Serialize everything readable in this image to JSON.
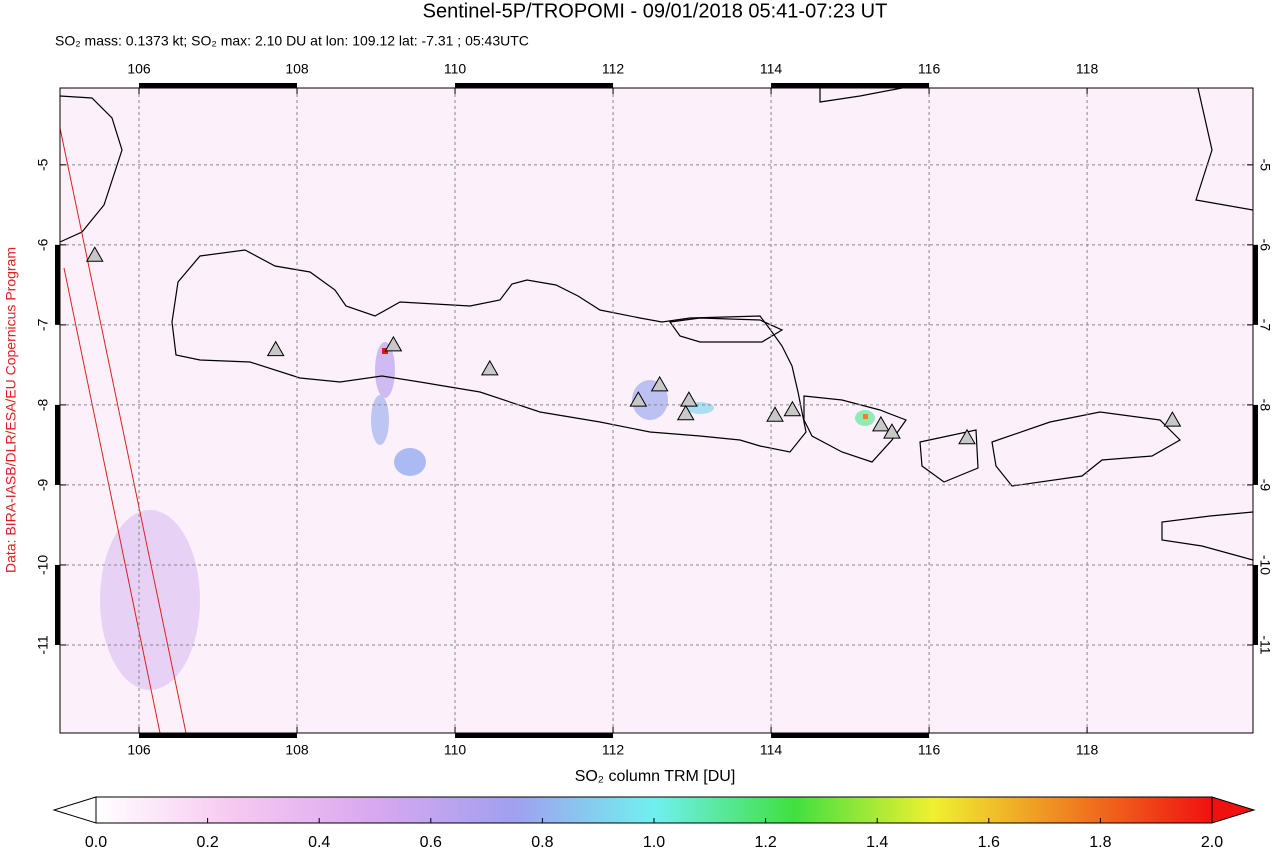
{
  "chart_data": {
    "type": "map",
    "title": "Sentinel-5P/TROPOMI - 09/01/2018 05:41-07:23 UT",
    "subtitle": "SO₂ mass: 0.1373 kt; SO₂ max: 2.10 DU at lon: 109.12 lat: -7.31 ; 05:43UTC",
    "credit": "Data: BIRA-IASB/DLR/ESA/EU Copernicus Program",
    "xlim": [
      105,
      120.1
    ],
    "ylim": [
      -4.04,
      -12.1
    ],
    "xticks": [
      106,
      108,
      110,
      112,
      114,
      116,
      118
    ],
    "yticks": [
      -5,
      -6,
      -7,
      -8,
      -9,
      -10,
      -11
    ],
    "grid": true,
    "volcanoes": {
      "color": "#c8c8c8",
      "x": [
        105.44,
        107.73,
        109.22,
        110.44,
        112.32,
        112.59,
        112.96,
        112.92,
        114.05,
        114.27,
        115.39,
        115.53,
        116.48,
        119.08
      ],
      "y": [
        -6.13,
        -7.31,
        -7.25,
        -7.55,
        -7.94,
        -7.75,
        -7.94,
        -8.11,
        -8.13,
        -8.06,
        -8.25,
        -8.34,
        -8.41,
        -8.19
      ]
    },
    "colorbar": {
      "label": "SO₂ column TRM [DU]",
      "lim": [
        0,
        2
      ],
      "ticks": [
        {
          "value": 0,
          "label": "0.0"
        },
        0.2,
        0.4,
        0.6,
        0.8,
        {
          "value": 1,
          "label": "1.0"
        },
        1.2,
        1.4,
        1.6,
        1.8,
        {
          "value": 2,
          "label": "2.0"
        }
      ],
      "colors": [
        "#ffffff",
        "#f6c8f0",
        "#d8a8f0",
        "#a0a0f0",
        "#70f0f0",
        "#40e040",
        "#f0f030",
        "#f08020",
        "#f01010"
      ]
    }
  }
}
